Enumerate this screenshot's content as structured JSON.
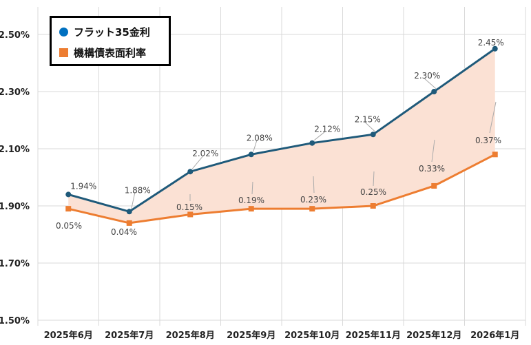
{
  "chart_data": {
    "type": "line",
    "categories": [
      "2025年6月",
      "2025年7月",
      "2025年8月",
      "2025年9月",
      "2025年10月",
      "2025年11月",
      "2025年12月",
      "2026年1月"
    ],
    "series": [
      {
        "name": "フラット35金利",
        "values": [
          1.94,
          1.88,
          2.02,
          2.08,
          2.12,
          2.15,
          2.3,
          2.45
        ],
        "labels": [
          "1.94%",
          "1.88%",
          "2.02%",
          "2.08%",
          "2.12%",
          "2.15%",
          "2.30%",
          "2.45%"
        ],
        "color": "#1f5a7a",
        "legend_color": "#0070c0",
        "marker": "circle"
      },
      {
        "name": "機構債表面利率",
        "values": [
          1.89,
          1.84,
          1.87,
          1.89,
          1.89,
          1.9,
          1.97,
          2.08
        ],
        "color": "#ed7d31",
        "marker": "square"
      }
    ],
    "spread_labels": [
      "0.05%",
      "0.04%",
      "0.15%",
      "0.19%",
      "0.23%",
      "0.25%",
      "0.33%",
      "0.37%"
    ],
    "spread_fill": "#fbe1d4",
    "y_ticks": [
      "1.50%",
      "1.70%",
      "1.90%",
      "2.10%",
      "2.30%",
      "2.50%"
    ],
    "ylim": [
      1.5,
      2.5
    ],
    "grid": true,
    "legend": "top-left"
  }
}
